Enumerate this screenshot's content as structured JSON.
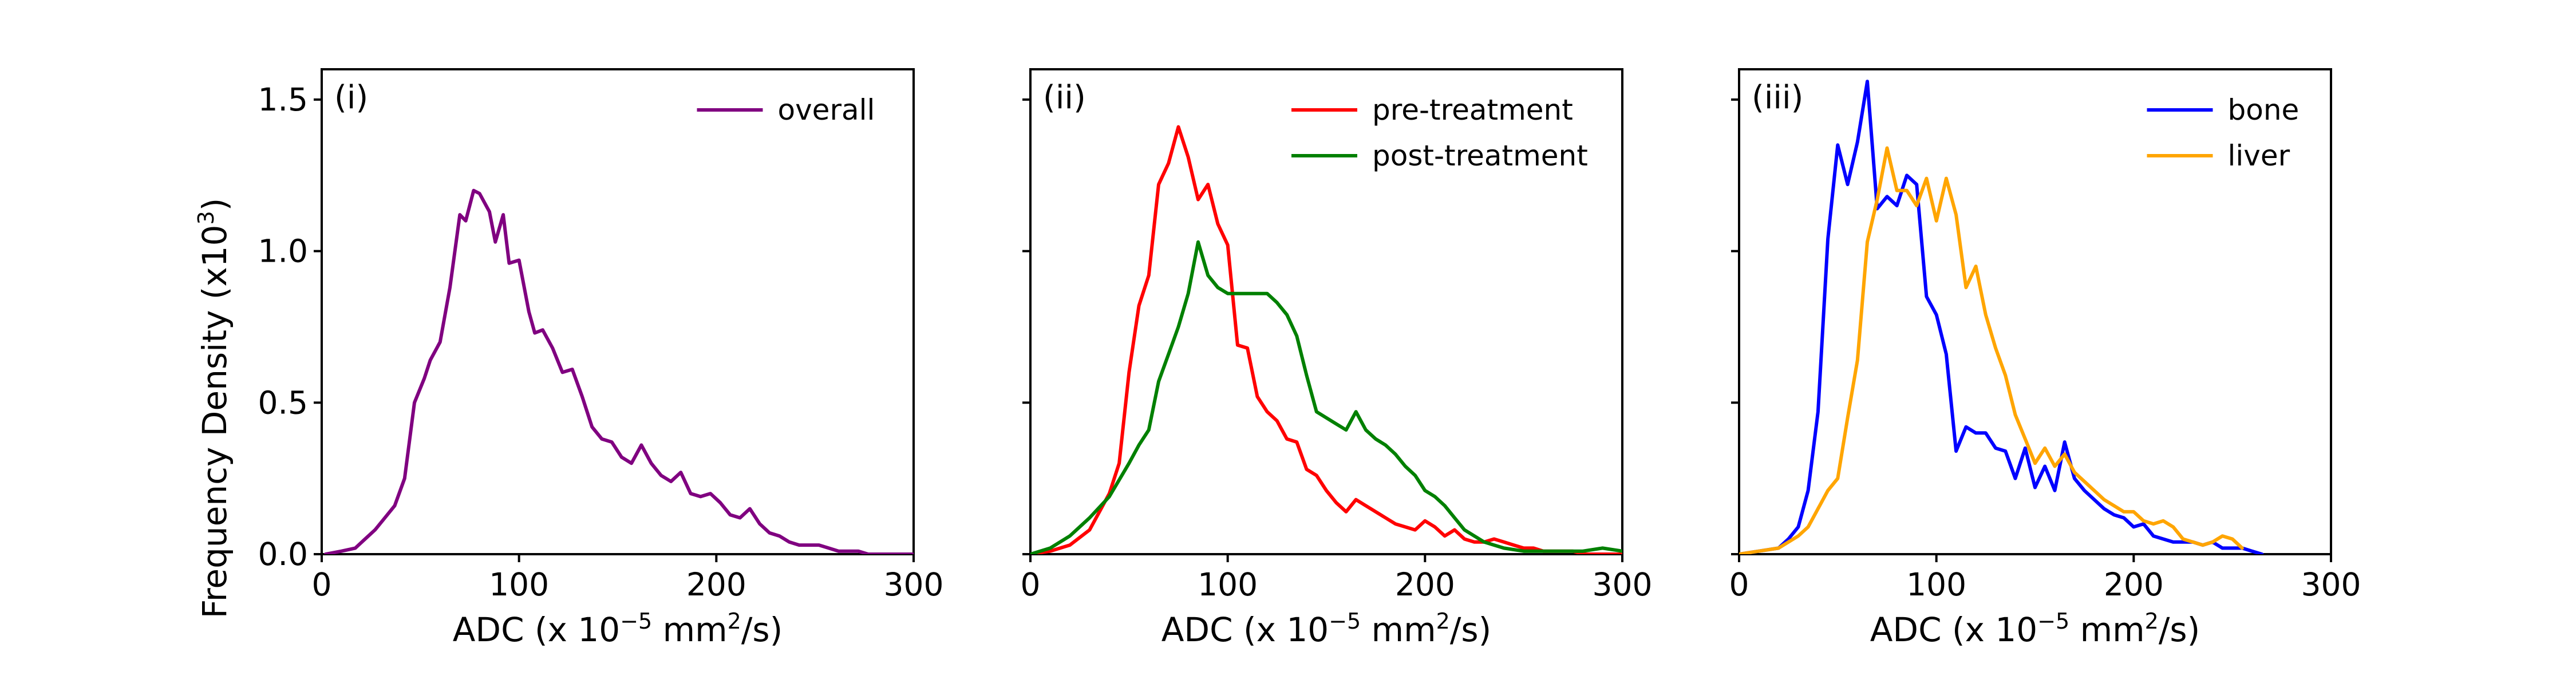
{
  "ylabel_main": "Frequency Density (x10",
  "ylabel_exp": "3",
  "ylabel_close": ")",
  "chart_data": [
    {
      "type": "line",
      "panel_label": "(i)",
      "xlabel": "ADC (x 10",
      "xlabel_exp": "−5",
      "xlabel_mid": " mm",
      "xlabel_exp2": "2",
      "xlabel_end": "/s)",
      "xlim": [
        0,
        300
      ],
      "ylim": [
        0,
        1.6
      ],
      "xticks": [
        0,
        100,
        200,
        300
      ],
      "xtick_labels": [
        "0",
        "100",
        "200",
        "300"
      ],
      "yticks": [
        0,
        0.5,
        1.0,
        1.5
      ],
      "ytick_labels": [
        "0.0",
        "0.5",
        "1.0",
        "1.5"
      ],
      "legend_position": "top-right",
      "series": [
        {
          "name": "overall",
          "color": "#800080",
          "x": [
            2,
            10,
            17,
            22,
            27,
            32,
            37,
            42,
            47,
            52,
            55,
            60,
            65,
            70,
            73,
            77,
            80,
            85,
            88,
            92,
            95,
            100,
            105,
            108,
            112,
            117,
            122,
            127,
            132,
            137,
            142,
            147,
            152,
            157,
            162,
            167,
            172,
            177,
            182,
            187,
            192,
            197,
            202,
            207,
            212,
            217,
            222,
            227,
            232,
            237,
            242,
            247,
            252,
            257,
            262,
            267,
            272,
            277,
            282,
            287,
            292,
            297,
            300
          ],
          "y": [
            0.0,
            0.01,
            0.02,
            0.05,
            0.08,
            0.12,
            0.16,
            0.25,
            0.5,
            0.58,
            0.64,
            0.7,
            0.88,
            1.12,
            1.1,
            1.2,
            1.19,
            1.13,
            1.03,
            1.12,
            0.96,
            0.97,
            0.8,
            0.73,
            0.74,
            0.68,
            0.6,
            0.61,
            0.52,
            0.42,
            0.38,
            0.37,
            0.32,
            0.3,
            0.36,
            0.3,
            0.26,
            0.24,
            0.27,
            0.2,
            0.19,
            0.2,
            0.17,
            0.13,
            0.12,
            0.15,
            0.1,
            0.07,
            0.06,
            0.04,
            0.03,
            0.03,
            0.03,
            0.02,
            0.01,
            0.01,
            0.01,
            0.0,
            0.0,
            0.0,
            0.0,
            0.0,
            0.0
          ]
        }
      ]
    },
    {
      "type": "line",
      "panel_label": "(ii)",
      "xlabel": "ADC (x 10",
      "xlabel_exp": "−5",
      "xlabel_mid": " mm",
      "xlabel_exp2": "2",
      "xlabel_end": "/s)",
      "xlim": [
        0,
        300
      ],
      "ylim": [
        0,
        1.6
      ],
      "xticks": [
        0,
        100,
        200,
        300
      ],
      "xtick_labels": [
        "0",
        "100",
        "200",
        "300"
      ],
      "yticks": [
        0,
        0.5,
        1.0,
        1.5
      ],
      "ytick_labels": [
        "",
        "",
        "",
        ""
      ],
      "legend_position": "top-right",
      "series": [
        {
          "name": "pre-treatment",
          "color": "#ff0000",
          "x": [
            0,
            10,
            20,
            30,
            35,
            40,
            45,
            50,
            55,
            60,
            65,
            70,
            75,
            80,
            85,
            90,
            95,
            100,
            105,
            110,
            115,
            120,
            125,
            130,
            135,
            140,
            145,
            150,
            155,
            160,
            165,
            170,
            175,
            180,
            185,
            190,
            195,
            200,
            205,
            210,
            215,
            220,
            225,
            230,
            235,
            240,
            245,
            250,
            255,
            260,
            265,
            270,
            275,
            280,
            285,
            290,
            295,
            300
          ],
          "y": [
            0.0,
            0.01,
            0.03,
            0.08,
            0.14,
            0.2,
            0.3,
            0.6,
            0.82,
            0.92,
            1.22,
            1.29,
            1.41,
            1.31,
            1.17,
            1.22,
            1.09,
            1.02,
            0.69,
            0.68,
            0.52,
            0.47,
            0.44,
            0.38,
            0.37,
            0.28,
            0.26,
            0.21,
            0.17,
            0.14,
            0.18,
            0.16,
            0.14,
            0.12,
            0.1,
            0.09,
            0.08,
            0.11,
            0.09,
            0.06,
            0.08,
            0.05,
            0.04,
            0.04,
            0.05,
            0.04,
            0.03,
            0.02,
            0.02,
            0.01,
            0.01,
            0.01,
            0.01,
            0.0,
            0.0,
            0.0,
            0.0,
            0.0
          ]
        },
        {
          "name": "post-treatment",
          "color": "#008000",
          "x": [
            0,
            10,
            20,
            30,
            40,
            50,
            55,
            60,
            65,
            70,
            75,
            80,
            85,
            90,
            95,
            100,
            105,
            110,
            115,
            120,
            125,
            130,
            135,
            140,
            145,
            150,
            155,
            160,
            165,
            170,
            175,
            180,
            185,
            190,
            195,
            200,
            205,
            210,
            215,
            220,
            225,
            230,
            235,
            240,
            250,
            260,
            270,
            280,
            290,
            300
          ],
          "y": [
            0.0,
            0.02,
            0.06,
            0.12,
            0.19,
            0.3,
            0.36,
            0.41,
            0.57,
            0.66,
            0.75,
            0.86,
            1.03,
            0.92,
            0.88,
            0.86,
            0.86,
            0.86,
            0.86,
            0.86,
            0.83,
            0.79,
            0.72,
            0.59,
            0.47,
            0.45,
            0.43,
            0.41,
            0.47,
            0.41,
            0.38,
            0.36,
            0.33,
            0.29,
            0.26,
            0.21,
            0.19,
            0.16,
            0.12,
            0.08,
            0.06,
            0.04,
            0.03,
            0.02,
            0.01,
            0.01,
            0.01,
            0.01,
            0.02,
            0.01
          ]
        }
      ]
    },
    {
      "type": "line",
      "panel_label": "(iii)",
      "xlabel": "ADC (x 10",
      "xlabel_exp": "−5",
      "xlabel_mid": " mm",
      "xlabel_exp2": "2",
      "xlabel_end": "/s)",
      "xlim": [
        0,
        300
      ],
      "ylim": [
        0,
        1.6
      ],
      "xticks": [
        0,
        100,
        200,
        300
      ],
      "xtick_labels": [
        "0",
        "100",
        "200",
        "300"
      ],
      "yticks": [
        0,
        0.5,
        1.0,
        1.5
      ],
      "ytick_labels": [
        "",
        "",
        "",
        ""
      ],
      "legend_position": "top-right",
      "series": [
        {
          "name": "bone",
          "color": "#0000ff",
          "x": [
            0,
            10,
            20,
            25,
            30,
            35,
            40,
            45,
            50,
            55,
            60,
            65,
            70,
            75,
            80,
            85,
            90,
            95,
            100,
            105,
            110,
            115,
            120,
            125,
            130,
            135,
            140,
            145,
            150,
            155,
            160,
            165,
            170,
            175,
            180,
            185,
            190,
            195,
            200,
            205,
            210,
            215,
            220,
            225,
            230,
            235,
            240,
            245,
            250,
            255,
            260,
            265
          ],
          "y": [
            0.0,
            0.01,
            0.02,
            0.05,
            0.09,
            0.21,
            0.47,
            1.04,
            1.35,
            1.22,
            1.36,
            1.56,
            1.14,
            1.18,
            1.15,
            1.25,
            1.22,
            0.85,
            0.79,
            0.66,
            0.34,
            0.42,
            0.4,
            0.4,
            0.35,
            0.34,
            0.25,
            0.35,
            0.22,
            0.29,
            0.21,
            0.37,
            0.25,
            0.21,
            0.18,
            0.15,
            0.13,
            0.12,
            0.09,
            0.1,
            0.06,
            0.05,
            0.04,
            0.04,
            0.04,
            0.03,
            0.04,
            0.02,
            0.02,
            0.02,
            0.01,
            0.0
          ]
        },
        {
          "name": "liver",
          "color": "#ffa500",
          "x": [
            0,
            10,
            20,
            30,
            35,
            40,
            45,
            50,
            55,
            60,
            65,
            70,
            75,
            80,
            85,
            90,
            95,
            100,
            105,
            110,
            115,
            120,
            125,
            130,
            135,
            140,
            145,
            150,
            155,
            160,
            165,
            170,
            175,
            180,
            185,
            190,
            195,
            200,
            205,
            210,
            215,
            220,
            225,
            230,
            235,
            240,
            245,
            250,
            255
          ],
          "y": [
            0.0,
            0.01,
            0.02,
            0.06,
            0.09,
            0.15,
            0.21,
            0.25,
            0.45,
            0.64,
            1.03,
            1.17,
            1.34,
            1.2,
            1.2,
            1.15,
            1.24,
            1.1,
            1.24,
            1.12,
            0.88,
            0.95,
            0.79,
            0.68,
            0.59,
            0.46,
            0.38,
            0.3,
            0.35,
            0.29,
            0.33,
            0.27,
            0.24,
            0.21,
            0.18,
            0.16,
            0.14,
            0.14,
            0.11,
            0.1,
            0.11,
            0.09,
            0.05,
            0.04,
            0.03,
            0.04,
            0.06,
            0.05,
            0.02
          ]
        }
      ]
    }
  ]
}
